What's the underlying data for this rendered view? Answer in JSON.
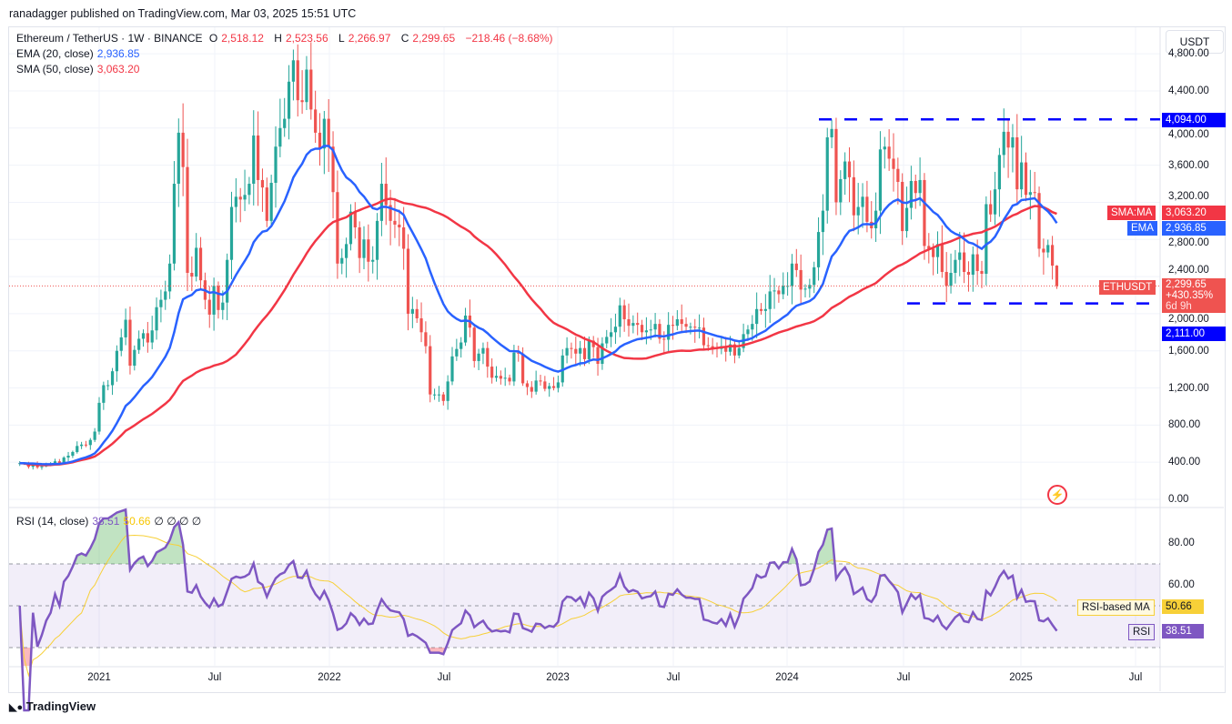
{
  "header": {
    "published": "ranadagger published on TradingView.com, Mar 03, 2025 15:51 UTC"
  },
  "legend": {
    "symbol": "Ethereum / TetherUS · 1W · BINANCE",
    "o_label": "O",
    "o": "2,518.12",
    "h_label": "H",
    "h": "2,523.56",
    "l_label": "L",
    "l": "2,266.97",
    "c_label": "C",
    "c": "2,299.65",
    "change": "−218.46 (−8.68%)",
    "ema_label": "EMA (20, close)",
    "ema": "2,936.85",
    "sma_label": "SMA (50, close)",
    "sma": "3,063.20",
    "rsi_label": "RSI (14, close)",
    "rsi": "38.51",
    "rsi_ma": "50.66",
    "rsi_na": "∅ ∅ ∅ ∅"
  },
  "currency_button": "USDT",
  "price_tags": {
    "sma_name": "SMA:MA",
    "sma_value": "3,063.20",
    "ema_name": "EMA",
    "ema_value": "2,936.85",
    "symbol_name": "ETHUSDT",
    "last_value": "2,299.65",
    "last_change": "+430.35%",
    "countdown": "6d 9h",
    "resistance": "4,094.00",
    "support": "2,111.00",
    "rsi_ma_name": "RSI-based MA",
    "rsi_ma_value": "50.66",
    "rsi_name": "RSI",
    "rsi_value": "38.51"
  },
  "colors": {
    "up": "#26a69a",
    "down": "#ef5350",
    "ema": "#2962ff",
    "sma": "#f23645",
    "hline": "#0000ff",
    "rsi": "#7e57c2",
    "rsi_ma": "#f7d038"
  },
  "footer": {
    "logo": "TradingView"
  },
  "icons": {
    "flash": "lightning-icon",
    "logo": "tradingview-logo"
  },
  "chart_data": {
    "type": "candlestick",
    "interval": "1W",
    "price_axis": {
      "ticks": [
        "0.00",
        "400.00",
        "800.00",
        "1,200.00",
        "1,600.00",
        "2,000.00",
        "2,400.00",
        "2,800.00",
        "3,200.00",
        "3,600.00",
        "4,000.00",
        "4,400.00",
        "4,800.00"
      ],
      "ylim": [
        0,
        4800
      ]
    },
    "time_axis": {
      "ticks": [
        "2021",
        "Jul",
        "2022",
        "Jul",
        "2023",
        "Jul",
        "2024",
        "Jul",
        "2025",
        "Jul"
      ]
    },
    "horizontal_levels": [
      4094,
      2111
    ],
    "weekly_closes": [
      390,
      385,
      350,
      385,
      345,
      355,
      370,
      380,
      410,
      390,
      450,
      470,
      510,
      575,
      590,
      585,
      640,
      730,
      1040,
      1230,
      1230,
      1380,
      1600,
      1745,
      1935,
      1440,
      1610,
      1730,
      1790,
      1690,
      1820,
      2070,
      2150,
      2240,
      2540,
      3400,
      3950,
      3580,
      2440,
      2400,
      2710,
      2360,
      2150,
      1990,
      2300,
      2040,
      2120,
      2580,
      3150,
      3260,
      3230,
      3280,
      3400,
      3920,
      3440,
      3360,
      3000,
      3410,
      3800,
      4000,
      4100,
      4500,
      4730,
      4300,
      4280,
      4630,
      4200,
      3950,
      3780,
      4100,
      3800,
      3310,
      2540,
      2600,
      2750,
      3100,
      2930,
      2600,
      2800,
      2560,
      2580,
      3000,
      3400,
      3170,
      3000,
      2960,
      2930,
      2700,
      2000,
      2050,
      1950,
      1800,
      1650,
      1130,
      1130,
      1130,
      1060,
      1270,
      1540,
      1620,
      1690,
      1980,
      1850,
      1490,
      1570,
      1630,
      1430,
      1310,
      1330,
      1300,
      1310,
      1270,
      1580,
      1570,
      1250,
      1210,
      1160,
      1280,
      1270,
      1190,
      1220,
      1200,
      1260,
      1550,
      1630,
      1620,
      1570,
      1630,
      1510,
      1710,
      1640,
      1460,
      1680,
      1750,
      1800,
      1860,
      2090,
      1940,
      1870,
      1900,
      1880,
      1800,
      1820,
      1830,
      1890,
      1730,
      1720,
      1880,
      1870,
      1940,
      1890,
      1860,
      1860,
      1850,
      1850,
      1660,
      1650,
      1630,
      1620,
      1650,
      1590,
      1670,
      1550,
      1630,
      1780,
      1830,
      1890,
      2050,
      2030,
      2050,
      2240,
      2250,
      2210,
      2300,
      2300,
      2540,
      2470,
      2260,
      2270,
      2310,
      2500,
      2880,
      3110,
      3900,
      3990,
      3200,
      3450,
      3640,
      3470,
      3060,
      3150,
      3260,
      2990,
      2920,
      3110,
      3770,
      3800,
      3670,
      3560,
      3420,
      2890,
      3140,
      3430,
      3300,
      3440,
      2730,
      2700,
      2610,
      2750,
      2450,
      2300,
      2440,
      2580,
      2660,
      2450,
      2420,
      2640,
      2460,
      2430,
      3180,
      3070,
      3340,
      3710,
      3960,
      3790,
      3900,
      3340,
      3630,
      3280,
      3310,
      3300,
      2700,
      2660,
      2740,
      2518.12,
      2299.65
    ],
    "indicators": [
      "EMA 20",
      "SMA 50",
      "RSI 14",
      "RSI-based MA 14"
    ],
    "rsi_axis": {
      "ticks": [
        "80.00",
        "60.00"
      ],
      "bands": [
        70,
        50,
        30
      ]
    }
  }
}
